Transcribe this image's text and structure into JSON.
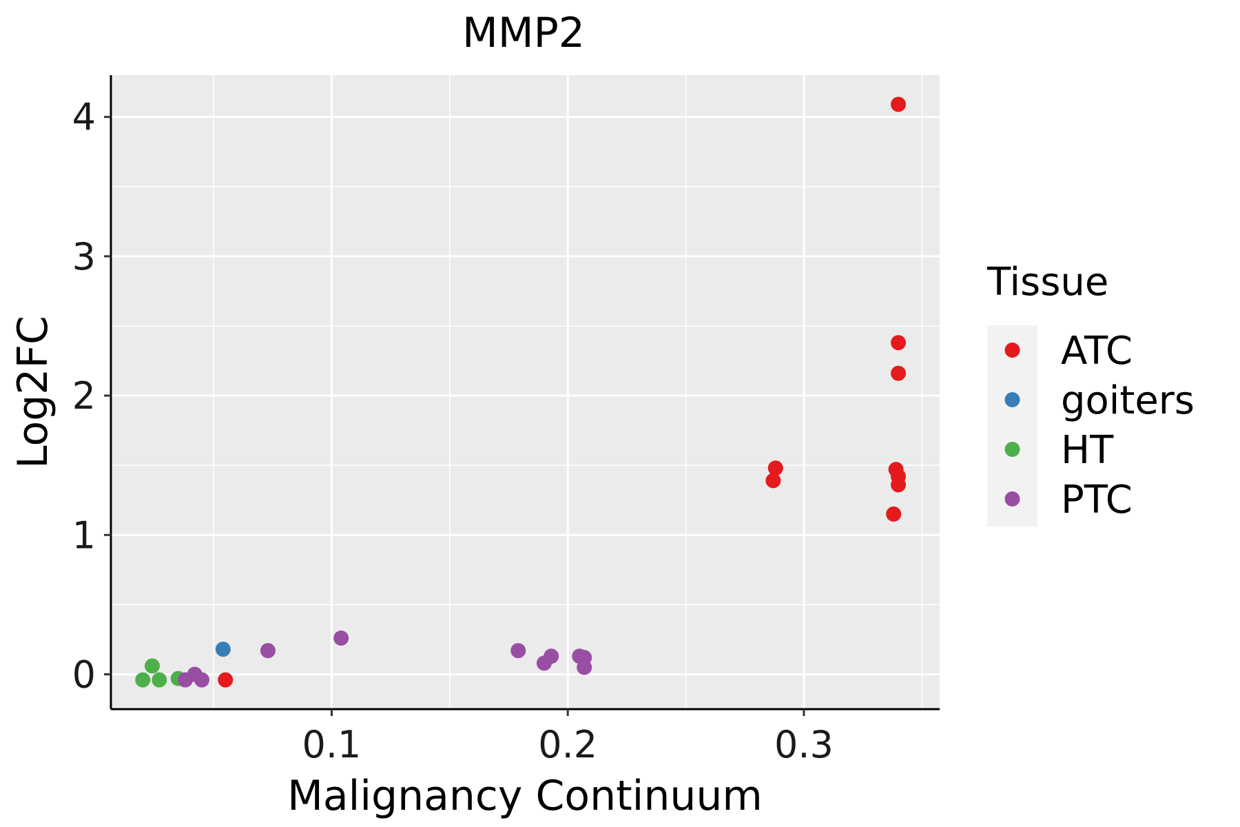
{
  "chart_data": {
    "type": "scatter",
    "title": "MMP2",
    "xlabel": "Malignancy Continuum",
    "ylabel": "Log2FC",
    "xlim": [
      0.0065,
      0.3575
    ],
    "ylim": [
      -0.25,
      4.3
    ],
    "x_ticks": [
      0.1,
      0.2,
      0.3
    ],
    "x_tick_labels": [
      "0.1",
      "0.2",
      "0.3"
    ],
    "y_ticks": [
      0,
      1,
      2,
      3,
      4
    ],
    "y_tick_labels": [
      "0",
      "1",
      "2",
      "3",
      "4"
    ],
    "grid": true,
    "legend": {
      "title": "Tissue",
      "position": "right"
    },
    "series": [
      {
        "name": "ATC",
        "color": "#e41a1c",
        "points": [
          {
            "x": 0.34,
            "y": 4.09
          },
          {
            "x": 0.34,
            "y": 2.38
          },
          {
            "x": 0.34,
            "y": 2.16
          },
          {
            "x": 0.288,
            "y": 1.48
          },
          {
            "x": 0.287,
            "y": 1.39
          },
          {
            "x": 0.339,
            "y": 1.47
          },
          {
            "x": 0.34,
            "y": 1.42
          },
          {
            "x": 0.34,
            "y": 1.36
          },
          {
            "x": 0.338,
            "y": 1.15
          },
          {
            "x": 0.055,
            "y": -0.04
          }
        ]
      },
      {
        "name": "goiters",
        "color": "#377eb8",
        "points": [
          {
            "x": 0.054,
            "y": 0.18
          }
        ]
      },
      {
        "name": "HT",
        "color": "#4daf4a",
        "points": [
          {
            "x": 0.024,
            "y": 0.06
          },
          {
            "x": 0.02,
            "y": -0.04
          },
          {
            "x": 0.027,
            "y": -0.04
          },
          {
            "x": 0.035,
            "y": -0.03
          }
        ]
      },
      {
        "name": "PTC",
        "color": "#984ea3",
        "points": [
          {
            "x": 0.104,
            "y": 0.26
          },
          {
            "x": 0.073,
            "y": 0.17
          },
          {
            "x": 0.042,
            "y": 0.0
          },
          {
            "x": 0.038,
            "y": -0.04
          },
          {
            "x": 0.045,
            "y": -0.04
          },
          {
            "x": 0.179,
            "y": 0.17
          },
          {
            "x": 0.193,
            "y": 0.13
          },
          {
            "x": 0.19,
            "y": 0.08
          },
          {
            "x": 0.205,
            "y": 0.13
          },
          {
            "x": 0.207,
            "y": 0.12
          },
          {
            "x": 0.207,
            "y": 0.05
          }
        ]
      }
    ]
  }
}
